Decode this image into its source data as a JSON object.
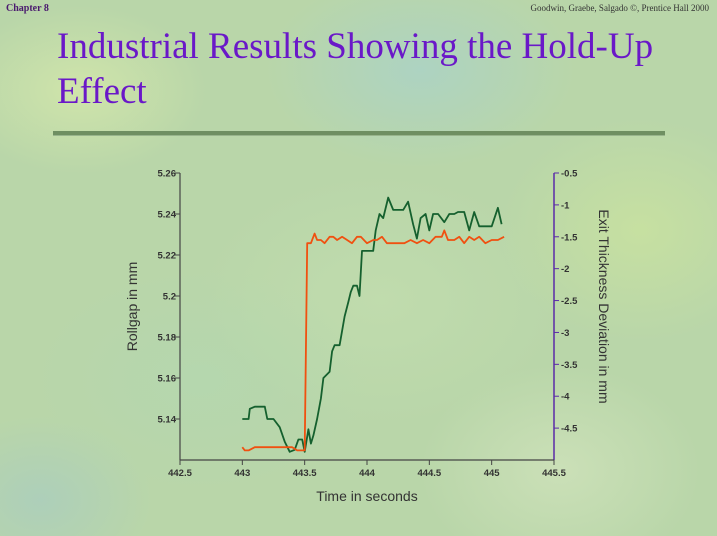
{
  "header": {
    "chapter": "Chapter 8",
    "credit": "Goodwin, Graebe, Salgado ©, Prentice Hall 2000"
  },
  "slide": {
    "title": "Industrial Results Showing the Hold-Up Effect"
  },
  "colors": {
    "title": "#6a18c8",
    "left_axis": "#444444",
    "right_axis": "#5a2aa8",
    "rollgap_series": "#15602e",
    "exit_thickness_series": "#f05010"
  },
  "chart_data": {
    "type": "line",
    "title": "",
    "xlabel": "Time in seconds",
    "ylabel": "Rollgap in mm",
    "y2label": "Exit Thickness Deviation in mm",
    "xlim": [
      442.5,
      445.5
    ],
    "ylim": [
      5.12,
      5.26
    ],
    "y2lim": [
      -5,
      -0.5
    ],
    "xticks": [
      "442.5",
      "443",
      "443.5",
      "444",
      "444.5",
      "445",
      "445.5"
    ],
    "yticks": [
      "5.14",
      "5.16",
      "5.18",
      "5.2",
      "5.22",
      "5.24",
      "5.26"
    ],
    "y2ticks": [
      "-4.5",
      "-4",
      "-3.5",
      "-3",
      "-2.5",
      "-2",
      "-1.5",
      "-1",
      "-0.5"
    ],
    "grid": false,
    "series": [
      {
        "name": "Rollgap",
        "axis": "left",
        "x": [
          443.0,
          443.05,
          443.06,
          443.1,
          443.18,
          443.2,
          443.25,
          443.3,
          443.34,
          443.38,
          443.42,
          443.45,
          443.48,
          443.5,
          443.53,
          443.55,
          443.57,
          443.6,
          443.63,
          443.65,
          443.7,
          443.72,
          443.74,
          443.78,
          443.82,
          443.85,
          443.87,
          443.89,
          443.92,
          443.94,
          443.96,
          444.0,
          444.05,
          444.07,
          444.1,
          444.13,
          444.17,
          444.21,
          444.24,
          444.29,
          444.33,
          444.37,
          444.4,
          444.43,
          444.47,
          444.5,
          444.53,
          444.57,
          444.62,
          444.66,
          444.7,
          444.73,
          444.78,
          444.82,
          444.86,
          444.9,
          444.95,
          445.0,
          445.05,
          445.08
        ],
        "y": [
          5.14,
          5.14,
          5.145,
          5.146,
          5.146,
          5.14,
          5.14,
          5.136,
          5.129,
          5.124,
          5.125,
          5.13,
          5.13,
          5.124,
          5.135,
          5.128,
          5.132,
          5.14,
          5.15,
          5.16,
          5.163,
          5.173,
          5.176,
          5.176,
          5.19,
          5.197,
          5.202,
          5.205,
          5.205,
          5.2,
          5.222,
          5.222,
          5.222,
          5.232,
          5.24,
          5.238,
          5.248,
          5.242,
          5.242,
          5.242,
          5.246,
          5.235,
          5.228,
          5.238,
          5.24,
          5.232,
          5.24,
          5.24,
          5.236,
          5.24,
          5.24,
          5.241,
          5.241,
          5.232,
          5.241,
          5.234,
          5.234,
          5.234,
          5.243,
          5.235
        ]
      },
      {
        "name": "Exit Thickness Deviation",
        "axis": "right",
        "x": [
          443.0,
          443.02,
          443.05,
          443.1,
          443.15,
          443.2,
          443.25,
          443.3,
          443.35,
          443.4,
          443.44,
          443.5,
          443.52,
          443.55,
          443.58,
          443.6,
          443.63,
          443.66,
          443.7,
          443.73,
          443.76,
          443.8,
          443.84,
          443.88,
          443.92,
          443.95,
          444.0,
          444.05,
          444.08,
          444.12,
          444.16,
          444.2,
          444.25,
          444.3,
          444.35,
          444.4,
          444.45,
          444.5,
          444.55,
          444.6,
          444.62,
          444.65,
          444.7,
          444.74,
          444.78,
          444.82,
          444.86,
          444.9,
          444.95,
          445.0,
          445.05,
          445.1
        ],
        "y": [
          -4.8,
          -4.85,
          -4.85,
          -4.8,
          -4.8,
          -4.8,
          -4.8,
          -4.8,
          -4.8,
          -4.8,
          -4.85,
          -4.85,
          -1.6,
          -1.6,
          -1.45,
          -1.55,
          -1.55,
          -1.6,
          -1.5,
          -1.5,
          -1.55,
          -1.5,
          -1.55,
          -1.6,
          -1.5,
          -1.5,
          -1.6,
          -1.55,
          -1.55,
          -1.5,
          -1.6,
          -1.6,
          -1.6,
          -1.6,
          -1.55,
          -1.6,
          -1.55,
          -1.6,
          -1.5,
          -1.5,
          -1.4,
          -1.55,
          -1.55,
          -1.5,
          -1.6,
          -1.5,
          -1.55,
          -1.5,
          -1.6,
          -1.55,
          -1.55,
          -1.5
        ]
      }
    ]
  }
}
